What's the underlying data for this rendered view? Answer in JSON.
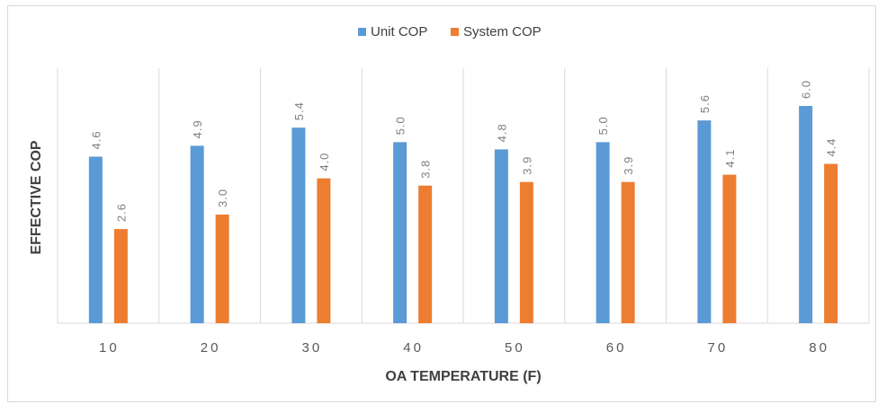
{
  "chart_data": {
    "type": "bar",
    "title": "",
    "xlabel": "OA TEMPERATURE (F)",
    "ylabel": "EFFECTIVE COP",
    "categories": [
      "10",
      "20",
      "30",
      "40",
      "50",
      "60",
      "70",
      "80"
    ],
    "series": [
      {
        "name": "Unit COP",
        "color": "#5b9bd5",
        "values": [
          4.6,
          4.9,
          5.4,
          5.0,
          4.8,
          5.0,
          5.6,
          6.0
        ],
        "labels": [
          "4.6",
          "4.9",
          "5.4",
          "5.0",
          "4.8",
          "5.0",
          "5.6",
          "6.0"
        ]
      },
      {
        "name": "System COP",
        "color": "#ed7d31",
        "values": [
          2.6,
          3.0,
          4.0,
          3.8,
          3.9,
          3.9,
          4.1,
          4.4
        ],
        "labels": [
          "2.6",
          "3.0",
          "4.0",
          "3.8",
          "3.9",
          "3.9",
          "4.1",
          "4.4"
        ]
      }
    ],
    "ylim": [
      0,
      6.0
    ],
    "y_axis_visible": false,
    "grid": "vertical category dividers",
    "legend": "top-center",
    "data_labels": "rotated above bars"
  }
}
